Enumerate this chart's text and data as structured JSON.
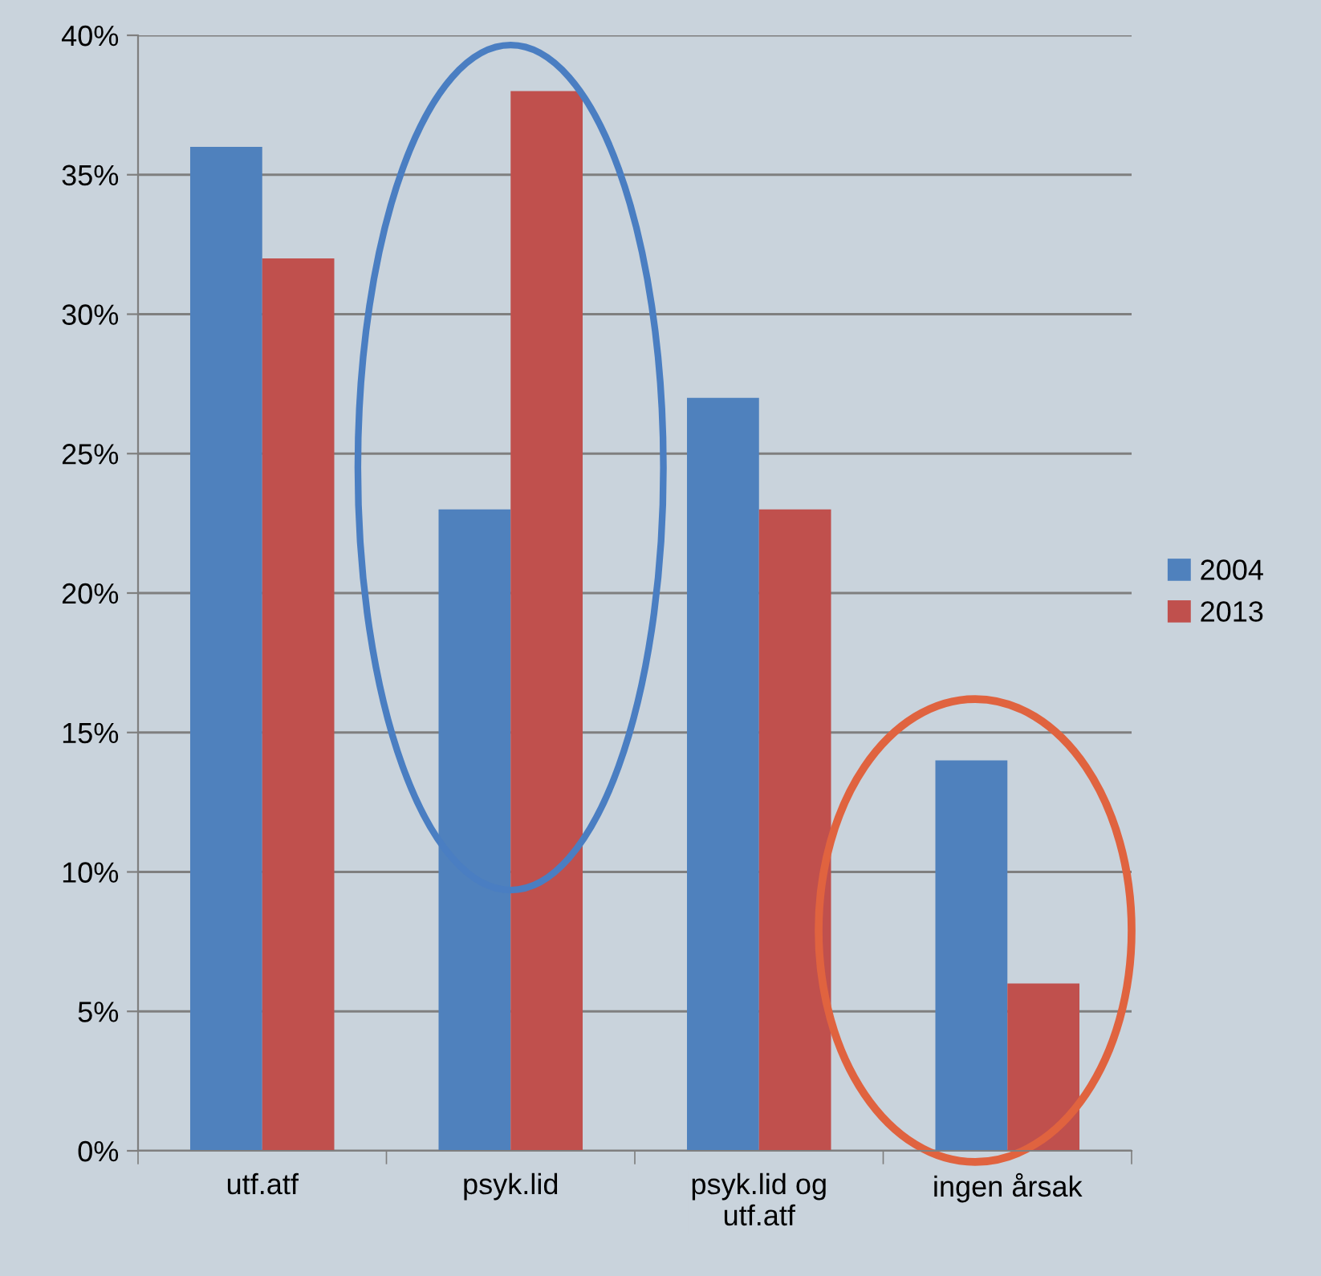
{
  "chart_data": {
    "type": "bar",
    "categories": [
      "utf.atf",
      "psyk.lid",
      "psyk.lid og\nutf.atf",
      "ingen årsak"
    ],
    "series": [
      {
        "name": "2004",
        "color": "#4f81bd",
        "values": [
          36,
          23,
          27,
          14
        ]
      },
      {
        "name": "2013",
        "color": "#c0504d",
        "values": [
          32,
          38,
          23,
          6
        ]
      }
    ],
    "ylim": [
      0,
      40
    ],
    "yticks": [
      {
        "value": 0,
        "label": "0%"
      },
      {
        "value": 5,
        "label": "5%"
      },
      {
        "value": 10,
        "label": "10%"
      },
      {
        "value": 15,
        "label": "15%"
      },
      {
        "value": 20,
        "label": "20%"
      },
      {
        "value": 25,
        "label": "25%"
      },
      {
        "value": 30,
        "label": "30%"
      },
      {
        "value": 35,
        "label": "35%"
      },
      {
        "value": 40,
        "label": "40%"
      }
    ],
    "grid": "y",
    "legend": "right"
  }
}
